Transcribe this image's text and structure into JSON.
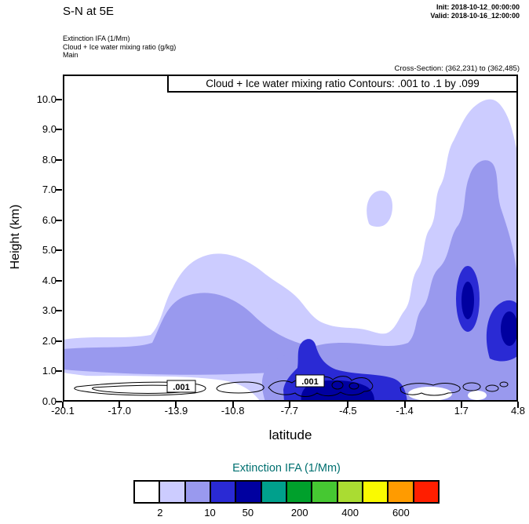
{
  "header": {
    "title": "S-N at 5E",
    "init": "Init: 2018-10-12_00:00:00",
    "valid": "Valid: 2018-10-16_12:00:00",
    "field_line1": "Extinction IFA  (1/Mm)",
    "field_line2": "Cloud + Ice water mixing ratio  (g/kg)",
    "field_line3": "Main",
    "cross_section": "Cross-Section: (362,231) to (362,485)"
  },
  "plot": {
    "contour_info": "Cloud + Ice water mixing ratio Contours: .001 to .1 by .099",
    "contour_label": ".001",
    "x_label": "latitude",
    "y_label": "Height (km)",
    "x_ticks": [
      "-20.1",
      "-17.0",
      "-13.9",
      "-10.8",
      "-7.7",
      "-4.5",
      "-1.4",
      "1.7",
      "4.8"
    ],
    "y_ticks": [
      "0.0",
      "1.0",
      "2.0",
      "3.0",
      "4.0",
      "5.0",
      "6.0",
      "7.0",
      "8.0",
      "9.0",
      "10.0"
    ]
  },
  "colorbar": {
    "title": "Extinction IFA (1/Mm)",
    "title_color": "#007070",
    "colors": [
      "#ffffff",
      "#ccccff",
      "#9999ee",
      "#2a2ad4",
      "#0000a0",
      "#00a08c",
      "#00a02c",
      "#46c832",
      "#aadc32",
      "#fafa00",
      "#ff9b00",
      "#ff1e00"
    ],
    "tick_labels": [
      "2",
      "10",
      "50",
      "200",
      "400",
      "600"
    ],
    "tick_positions": [
      0.087,
      0.25,
      0.374,
      0.543,
      0.708,
      0.874
    ]
  },
  "chart_data": {
    "type": "heatmap",
    "subtype": "filled_contour_vertical_cross_section",
    "title": "S-N at 5E",
    "init_time": "2018-10-12_00:00:00",
    "valid_time": "2018-10-16_12:00:00",
    "xlabel": "latitude",
    "ylabel": "Height (km)",
    "xlim": [
      -20.1,
      4.8
    ],
    "ylim": [
      0,
      10.8
    ],
    "x_ticks": [
      -20.1,
      -17.0,
      -13.9,
      -10.8,
      -7.7,
      -4.5,
      -1.4,
      1.7,
      4.8
    ],
    "y_ticks": [
      0,
      1,
      2,
      3,
      4,
      5,
      6,
      7,
      8,
      9,
      10
    ],
    "shaded_field": {
      "name": "Extinction IFA (1/Mm)",
      "colorbar_levels": [
        2,
        10,
        50,
        200,
        400,
        600
      ],
      "regions": [
        {
          "level": "2-10 (pale lavender)",
          "extent": "shallow layer 1-2.2 km from lat -20 to -11; lobe rising to ~5 km between lat -15 and -7; broad plume from lat -5 to 4.8 reaching above 10 km with peak near lat 0.5 to 2.5; small patch 6-7.5 km near lat -3.5"
        },
        {
          "level": "10-50 (periwinkle)",
          "extent": "band 0.7-1.6 km from lat -20 to -10; interior of mid lobe up to ~3.7 km near lat -13; bottom layer 0-2 km from lat -9 to 4.8; right plume interior 2-6 km with narrow column to ~9.7 km near lat 1.7"
        },
        {
          "level": "50-200 (blue)",
          "extent": "surface layer 0-2.3 km between lat -8.5 and -4.5; core 2.5-4.3 km near lat 1.7; blob 1.3-3.4 km near lat 4 to 4.8"
        },
        {
          "level": "200-400 (navy)",
          "extent": "near-surface core 0-0.8 km between lat -7.5 and -4.7; small core 2-3.3 km near lat 4.4; core 3-4 km near lat 1.7"
        }
      ]
    },
    "contour_field": {
      "name": "Cloud + Ice water mixing ratio (g/kg)",
      "levels": [
        0.001,
        0.1
      ],
      "interval": 0.099,
      "label": ".001",
      "extent": "thin wiggly .001 contours hugging 0.3-1 km from lat -19 to about lat 1; labeled boxes near (lat -13.8, 0.5 km) and (lat -6.6, 0.7 km)"
    },
    "legend_position": "bottom",
    "grid": false
  }
}
